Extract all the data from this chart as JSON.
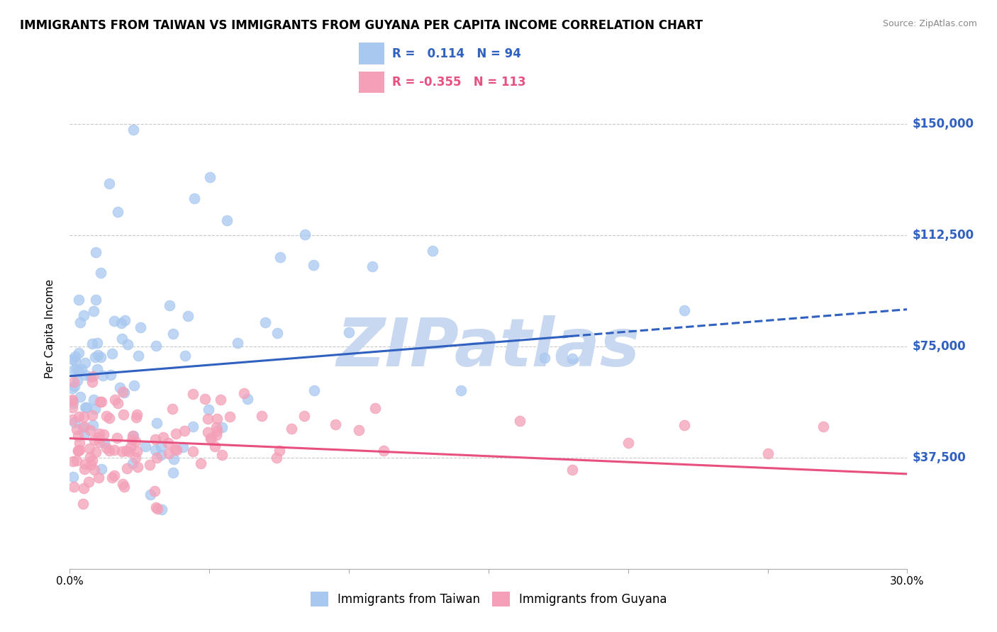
{
  "title": "IMMIGRANTS FROM TAIWAN VS IMMIGRANTS FROM GUYANA PER CAPITA INCOME CORRELATION CHART",
  "source": "Source: ZipAtlas.com",
  "ylabel": "Per Capita Income",
  "yticks": [
    0,
    37500,
    75000,
    112500,
    150000
  ],
  "ytick_labels": [
    "",
    "$37,500",
    "$75,000",
    "$112,500",
    "$150,000"
  ],
  "xmin": 0.0,
  "xmax": 0.3,
  "ymin": 0,
  "ymax": 162000,
  "taiwan_R": 0.114,
  "taiwan_N": 94,
  "guyana_R": -0.355,
  "guyana_N": 113,
  "taiwan_color": "#A8C8F0",
  "guyana_color": "#F4A0B8",
  "taiwan_line_color": "#3060C0",
  "guyana_line_color": "#E85080",
  "watermark": "ZIPatlas",
  "watermark_color": "#C8D8F0",
  "legend_taiwan_label": "Immigrants from Taiwan",
  "legend_guyana_label": "Immigrants from Guyana",
  "background_color": "#FFFFFF",
  "grid_color": "#C8C8C8",
  "taiwan_intercept": 65000,
  "taiwan_slope": 75000,
  "guyana_intercept": 44000,
  "guyana_slope": -40000
}
